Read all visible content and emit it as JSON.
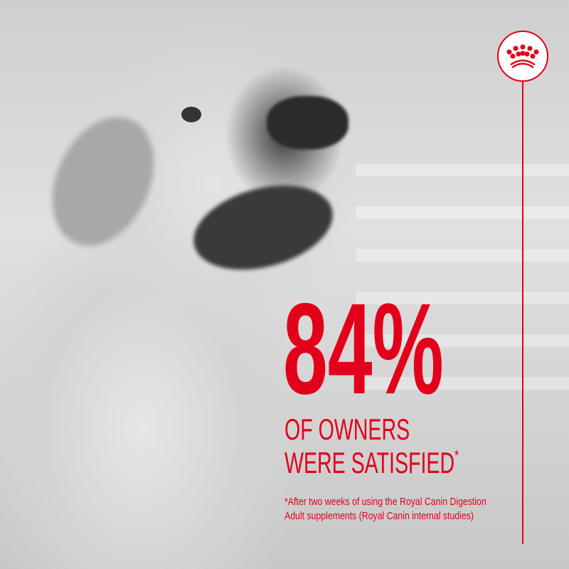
{
  "brand": {
    "color": "#e2001a",
    "logo_icon": "royal-crown-icon"
  },
  "headline": {
    "value": "84%"
  },
  "subtitle": {
    "line1": "OF OWNERS",
    "line2": "WERE SATISFIED",
    "marker": "*"
  },
  "footnote": {
    "line1": "*After two weeks of using the Royal Canin Digestion",
    "line2": "Adult supplements (Royal Canin internal studies)"
  }
}
